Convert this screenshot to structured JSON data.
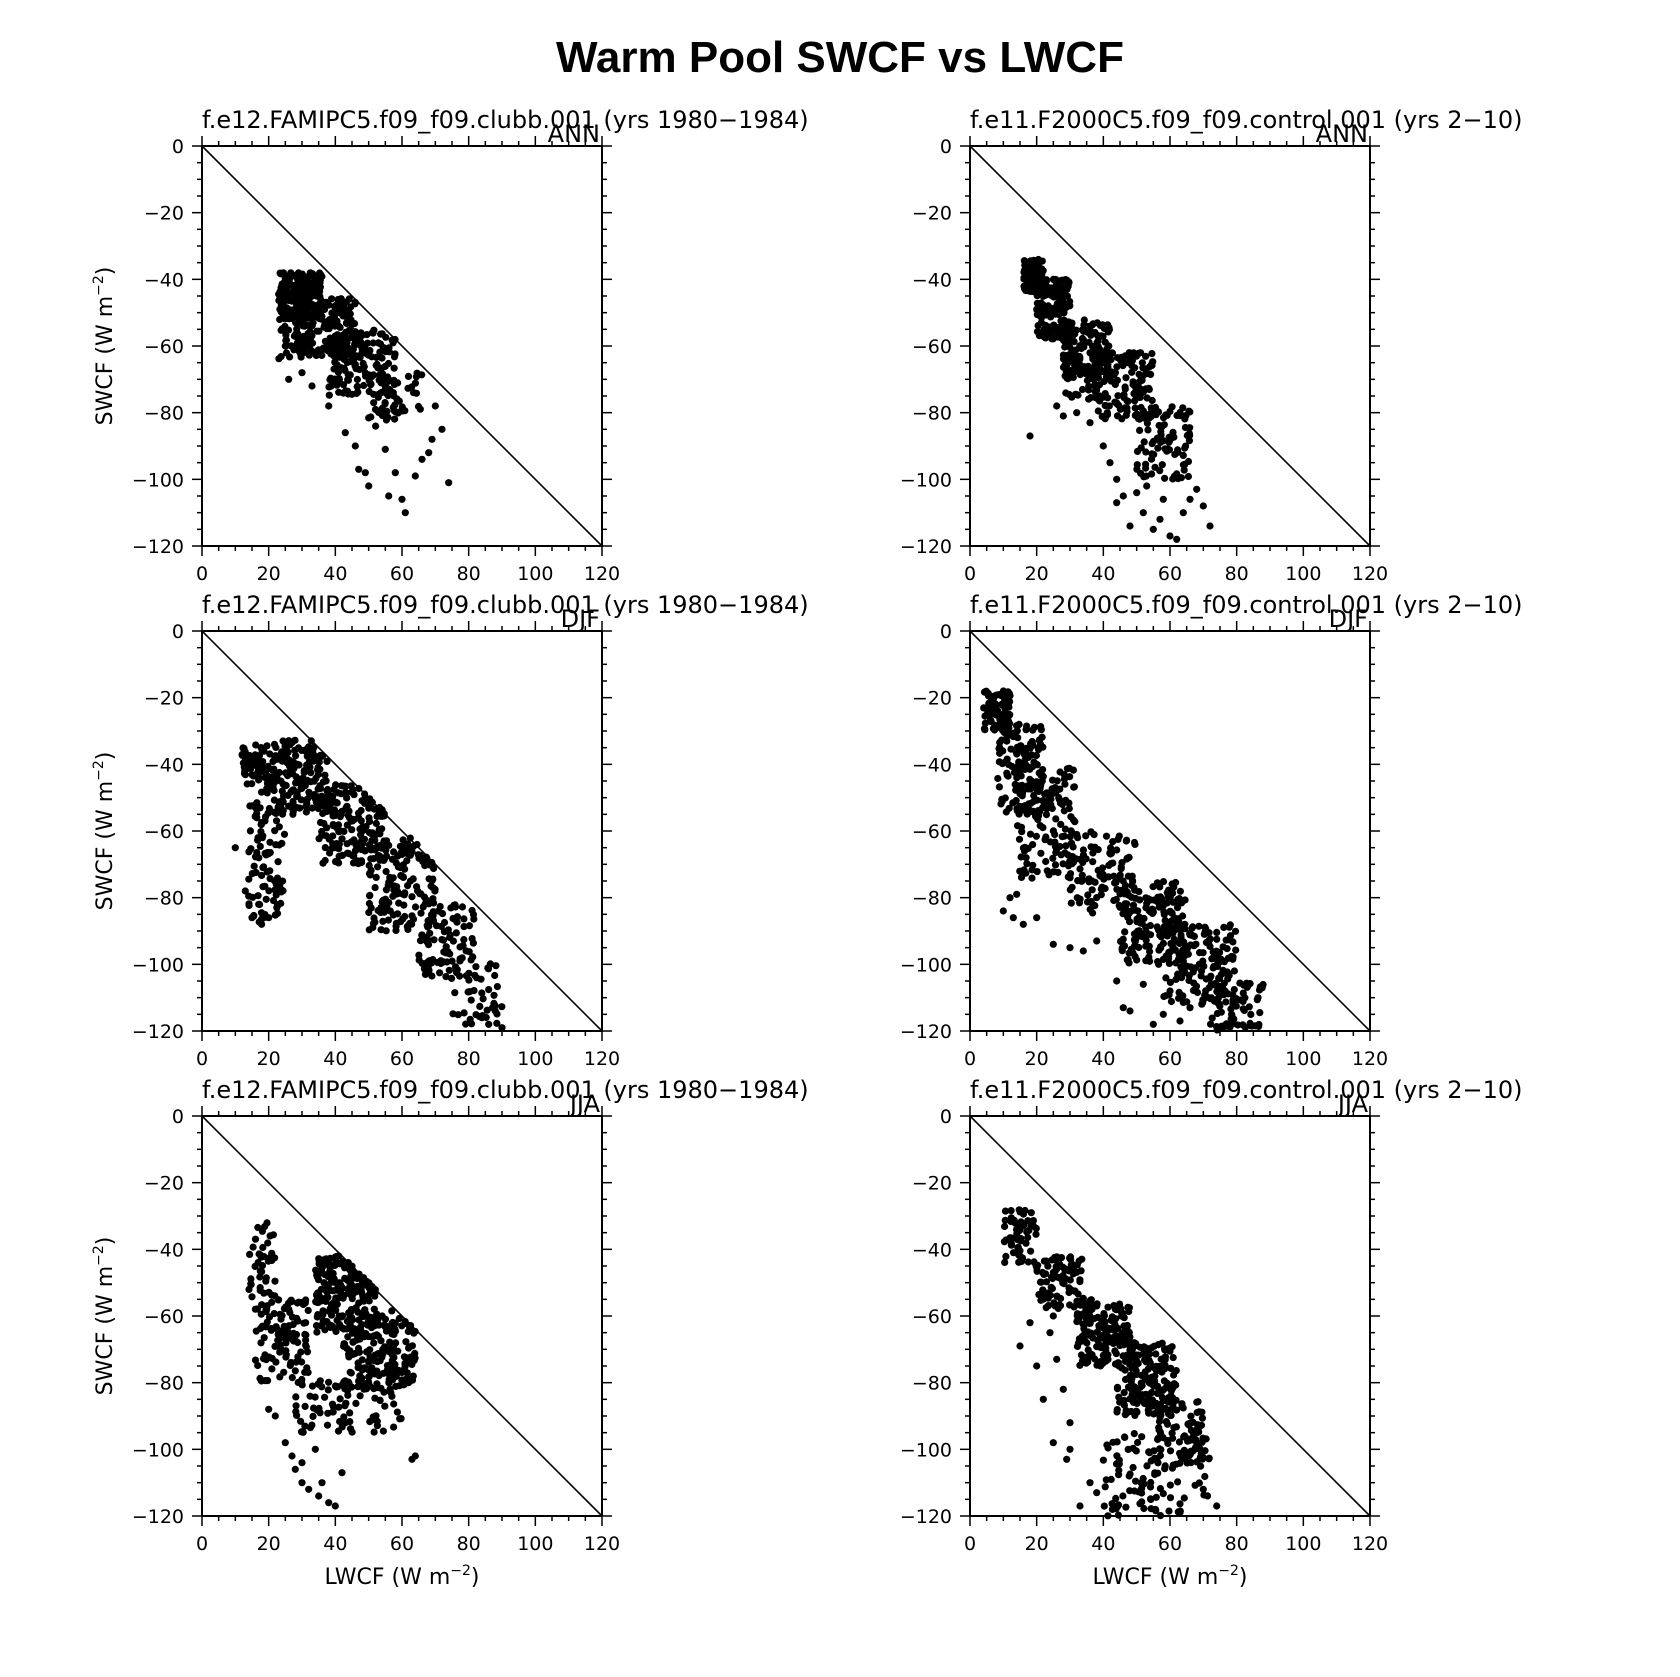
{
  "title": "Warm Pool SWCF vs LWCF",
  "chart_data": [
    {
      "type": "scatter",
      "title": "f.e12.FAMIPC5.f09_f09.clubb.001  (yrs 1980−1984)",
      "season": "ANN",
      "xlabel": "",
      "ylabel": "SWCF  (W m",
      "xlim": [
        0,
        120
      ],
      "ylim": [
        -120,
        0
      ],
      "xticks": [
        "0",
        "20",
        "40",
        "60",
        "80",
        "100",
        "120"
      ],
      "yticks": [
        "0",
        "−20",
        "−40",
        "−60",
        "−80",
        "−100",
        "−120"
      ],
      "reference_line": [
        [
          0,
          0
        ],
        [
          120,
          -120
        ]
      ],
      "clusters": [
        {
          "x": [
            23,
            36
          ],
          "y": [
            -38,
            -52
          ],
          "n": 200
        },
        {
          "x": [
            28,
            46
          ],
          "y": [
            -45,
            -63
          ],
          "n": 180
        },
        {
          "x": [
            38,
            58
          ],
          "y": [
            -55,
            -75
          ],
          "n": 150
        },
        {
          "x": [
            50,
            66
          ],
          "y": [
            -68,
            -85
          ],
          "n": 60
        },
        {
          "x": [
            23,
            30
          ],
          "y": [
            -48,
            -65
          ],
          "n": 25
        }
      ],
      "points": [
        [
          25,
          -60
        ],
        [
          26,
          -70
        ],
        [
          30,
          -68
        ],
        [
          33,
          -72
        ],
        [
          38,
          -78
        ],
        [
          43,
          -86
        ],
        [
          46,
          -90
        ],
        [
          47,
          -97
        ],
        [
          49,
          -98
        ],
        [
          50,
          -102
        ],
        [
          55,
          -91
        ],
        [
          56,
          -105
        ],
        [
          58,
          -98
        ],
        [
          60,
          -106
        ],
        [
          61,
          -110
        ],
        [
          64,
          -99
        ],
        [
          66,
          -94
        ],
        [
          68,
          -92
        ],
        [
          69,
          -88
        ],
        [
          70,
          -78
        ],
        [
          72,
          -85
        ],
        [
          74,
          -101
        ]
      ]
    },
    {
      "type": "scatter",
      "title": "f.e11.F2000C5.f09_f09.control.001  (yrs 2−10)",
      "season": "ANN",
      "xlabel": "",
      "ylabel": "",
      "xlim": [
        0,
        120
      ],
      "ylim": [
        -120,
        0
      ],
      "xticks": [
        "0",
        "20",
        "40",
        "60",
        "80",
        "100",
        "120"
      ],
      "yticks": [
        "0",
        "−20",
        "−40",
        "−60",
        "−80",
        "−100",
        "−120"
      ],
      "reference_line": [
        [
          0,
          0
        ],
        [
          120,
          -120
        ]
      ],
      "clusters": [
        {
          "x": [
            16,
            22
          ],
          "y": [
            -34,
            -44
          ],
          "n": 120
        },
        {
          "x": [
            20,
            30
          ],
          "y": [
            -40,
            -58
          ],
          "n": 160
        },
        {
          "x": [
            28,
            42
          ],
          "y": [
            -52,
            -70
          ],
          "n": 150
        },
        {
          "x": [
            38,
            55
          ],
          "y": [
            -62,
            -82
          ],
          "n": 130
        },
        {
          "x": [
            50,
            66
          ],
          "y": [
            -78,
            -100
          ],
          "n": 90
        },
        {
          "x": [
            28,
            40
          ],
          "y": [
            -66,
            -76
          ],
          "n": 40
        }
      ],
      "points": [
        [
          18,
          -87
        ],
        [
          26,
          -78
        ],
        [
          28,
          -81
        ],
        [
          32,
          -80
        ],
        [
          36,
          -83
        ],
        [
          40,
          -90
        ],
        [
          42,
          -95
        ],
        [
          44,
          -100
        ],
        [
          46,
          -105
        ],
        [
          50,
          -104
        ],
        [
          52,
          -110
        ],
        [
          55,
          -115
        ],
        [
          57,
          -112
        ],
        [
          60,
          -117
        ],
        [
          62,
          -118
        ],
        [
          64,
          -110
        ],
        [
          66,
          -106
        ],
        [
          68,
          -103
        ],
        [
          70,
          -108
        ],
        [
          72,
          -114
        ],
        [
          44,
          -107
        ],
        [
          48,
          -114
        ],
        [
          53,
          -102
        ],
        [
          58,
          -106
        ]
      ]
    },
    {
      "type": "scatter",
      "title": "f.e12.FAMIPC5.f09_f09.clubb.001  (yrs 1980−1984)",
      "season": "DJF",
      "xlabel": "",
      "ylabel": "SWCF  (W m",
      "xlim": [
        0,
        120
      ],
      "ylim": [
        -120,
        0
      ],
      "xticks": [
        "0",
        "20",
        "40",
        "60",
        "80",
        "100",
        "120"
      ],
      "yticks": [
        "0",
        "−20",
        "−40",
        "−60",
        "−80",
        "−100",
        "−120"
      ],
      "reference_line": [
        [
          0,
          0
        ],
        [
          120,
          -120
        ]
      ],
      "clusters": [
        {
          "x": [
            12,
            22
          ],
          "y": [
            -34,
            -46
          ],
          "n": 70
        },
        {
          "x": [
            14,
            25
          ],
          "y": [
            -45,
            -88
          ],
          "n": 110
        },
        {
          "x": [
            22,
            38
          ],
          "y": [
            -32,
            -55
          ],
          "n": 150
        },
        {
          "x": [
            35,
            55
          ],
          "y": [
            -45,
            -70
          ],
          "n": 170
        },
        {
          "x": [
            50,
            70
          ],
          "y": [
            -62,
            -90
          ],
          "n": 150
        },
        {
          "x": [
            65,
            82
          ],
          "y": [
            -82,
            -105
          ],
          "n": 90
        },
        {
          "x": [
            75,
            90
          ],
          "y": [
            -98,
            -118
          ],
          "n": 45
        }
      ],
      "points": [
        [
          10,
          -65
        ],
        [
          13,
          -78
        ],
        [
          15,
          -86
        ],
        [
          17,
          -82
        ],
        [
          20,
          -86
        ],
        [
          84,
          -116
        ],
        [
          86,
          -118
        ],
        [
          88,
          -114
        ],
        [
          90,
          -119
        ]
      ]
    },
    {
      "type": "scatter",
      "title": "f.e11.F2000C5.f09_f09.control.001  (yrs 2−10)",
      "season": "DJF",
      "xlabel": "",
      "ylabel": "",
      "xlim": [
        0,
        120
      ],
      "ylim": [
        -120,
        0
      ],
      "xticks": [
        "0",
        "20",
        "40",
        "60",
        "80",
        "100",
        "120"
      ],
      "yticks": [
        "0",
        "−20",
        "−40",
        "−60",
        "−80",
        "−100",
        "−120"
      ],
      "reference_line": [
        [
          0,
          0
        ],
        [
          120,
          -120
        ]
      ],
      "clusters": [
        {
          "x": [
            4,
            12
          ],
          "y": [
            -18,
            -30
          ],
          "n": 90
        },
        {
          "x": [
            8,
            22
          ],
          "y": [
            -28,
            -55
          ],
          "n": 120
        },
        {
          "x": [
            14,
            32
          ],
          "y": [
            -40,
            -75
          ],
          "n": 130
        },
        {
          "x": [
            30,
            50
          ],
          "y": [
            -60,
            -85
          ],
          "n": 110
        },
        {
          "x": [
            45,
            65
          ],
          "y": [
            -75,
            -100
          ],
          "n": 160
        },
        {
          "x": [
            58,
            80
          ],
          "y": [
            -88,
            -112
          ],
          "n": 150
        },
        {
          "x": [
            72,
            88
          ],
          "y": [
            -105,
            -120
          ],
          "n": 70
        }
      ],
      "points": [
        [
          10,
          -84
        ],
        [
          13,
          -86
        ],
        [
          16,
          -88
        ],
        [
          20,
          -86
        ],
        [
          25,
          -94
        ],
        [
          30,
          -95
        ],
        [
          34,
          -96
        ],
        [
          38,
          -93
        ],
        [
          44,
          -105
        ],
        [
          46,
          -113
        ],
        [
          48,
          -114
        ],
        [
          52,
          -106
        ],
        [
          55,
          -118
        ],
        [
          58,
          -115
        ],
        [
          60,
          -108
        ],
        [
          63,
          -117
        ],
        [
          66,
          -113
        ],
        [
          12,
          -80
        ],
        [
          14,
          -79
        ]
      ]
    },
    {
      "type": "scatter",
      "title": "f.e12.FAMIPC5.f09_f09.clubb.001  (yrs 1980−1984)",
      "season": "JJA",
      "xlabel": "LWCF  (W m",
      "ylabel": "SWCF  (W m",
      "xlim": [
        0,
        120
      ],
      "ylim": [
        -120,
        0
      ],
      "xticks": [
        "0",
        "20",
        "40",
        "60",
        "80",
        "100",
        "120"
      ],
      "yticks": [
        "0",
        "−20",
        "−40",
        "−60",
        "−80",
        "−100",
        "−120"
      ],
      "reference_line": [
        [
          0,
          0
        ],
        [
          120,
          -120
        ]
      ],
      "clusters": [
        {
          "x": [
            14,
            22
          ],
          "y": [
            -32,
            -55
          ],
          "n": 40
        },
        {
          "x": [
            16,
            32
          ],
          "y": [
            -55,
            -80
          ],
          "n": 110
        },
        {
          "x": [
            34,
            52
          ],
          "y": [
            -42,
            -65
          ],
          "n": 190
        },
        {
          "x": [
            42,
            64
          ],
          "y": [
            -58,
            -82
          ],
          "n": 200
        },
        {
          "x": [
            28,
            60
          ],
          "y": [
            -78,
            -95
          ],
          "n": 90
        }
      ],
      "points": [
        [
          20,
          -88
        ],
        [
          22,
          -90
        ],
        [
          25,
          -98
        ],
        [
          27,
          -102
        ],
        [
          28,
          -106
        ],
        [
          30,
          -104
        ],
        [
          30,
          -110
        ],
        [
          32,
          -112
        ],
        [
          34,
          -100
        ],
        [
          35,
          -114
        ],
        [
          36,
          -110
        ],
        [
          38,
          -116
        ],
        [
          40,
          -117
        ],
        [
          42,
          -107
        ],
        [
          63,
          -103
        ],
        [
          64,
          -102
        ]
      ]
    },
    {
      "type": "scatter",
      "title": "f.e11.F2000C5.f09_f09.control.001  (yrs 2−10)",
      "season": "JJA",
      "xlabel": "LWCF  (W m",
      "ylabel": "",
      "xlim": [
        0,
        120
      ],
      "ylim": [
        -120,
        0
      ],
      "xticks": [
        "0",
        "20",
        "40",
        "60",
        "80",
        "100",
        "120"
      ],
      "yticks": [
        "0",
        "−20",
        "−40",
        "−60",
        "−80",
        "−100",
        "−120"
      ],
      "reference_line": [
        [
          0,
          0
        ],
        [
          120,
          -120
        ]
      ],
      "clusters": [
        {
          "x": [
            10,
            20
          ],
          "y": [
            -28,
            -45
          ],
          "n": 60
        },
        {
          "x": [
            20,
            34
          ],
          "y": [
            -42,
            -58
          ],
          "n": 90
        },
        {
          "x": [
            32,
            48
          ],
          "y": [
            -55,
            -75
          ],
          "n": 170
        },
        {
          "x": [
            44,
            62
          ],
          "y": [
            -68,
            -90
          ],
          "n": 170
        },
        {
          "x": [
            55,
            70
          ],
          "y": [
            -85,
            -105
          ],
          "n": 80
        },
        {
          "x": [
            40,
            72
          ],
          "y": [
            -95,
            -120
          ],
          "n": 110
        }
      ],
      "points": [
        [
          15,
          -69
        ],
        [
          18,
          -62
        ],
        [
          20,
          -75
        ],
        [
          22,
          -85
        ],
        [
          24,
          -65
        ],
        [
          26,
          -73
        ],
        [
          28,
          -82
        ],
        [
          30,
          -92
        ],
        [
          25,
          -60
        ],
        [
          30,
          -100
        ],
        [
          33,
          -117
        ],
        [
          36,
          -110
        ],
        [
          38,
          -113
        ],
        [
          25,
          -98
        ],
        [
          29,
          -103
        ],
        [
          74,
          -117
        ],
        [
          70,
          -112
        ]
      ]
    }
  ]
}
